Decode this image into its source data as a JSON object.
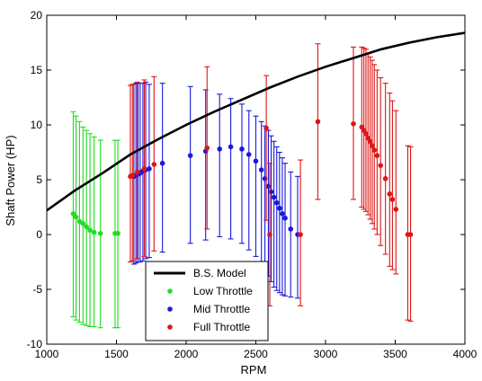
{
  "chart_data": {
    "type": "scatter",
    "xlabel": "RPM",
    "ylabel": "Shaft Power (HP)",
    "xlim": [
      1000,
      4000
    ],
    "ylim": [
      -10,
      20
    ],
    "xticks": [
      1000,
      1500,
      2000,
      2500,
      3000,
      3500,
      4000
    ],
    "yticks": [
      -10,
      -5,
      0,
      5,
      10,
      15,
      20
    ],
    "grid": false,
    "legend_position": "lower-center",
    "series": [
      {
        "name": "B.S. Model",
        "kind": "line",
        "color": "#000000",
        "x": [
          1000,
          1200,
          1400,
          1600,
          1800,
          2000,
          2200,
          2400,
          2600,
          2800,
          3000,
          3200,
          3400,
          3600,
          3800,
          4000
        ],
        "y": [
          2.2,
          4.0,
          5.6,
          7.3,
          8.7,
          10.0,
          11.2,
          12.3,
          13.4,
          14.4,
          15.3,
          16.1,
          16.9,
          17.5,
          18.0,
          18.4
        ]
      },
      {
        "name": "Low Throttle",
        "kind": "errorbar",
        "color": "#22dd22",
        "points": [
          {
            "x": 1190,
            "y": 1.9,
            "lo": -7.5,
            "hi": 11.2
          },
          {
            "x": 1210,
            "y": 1.6,
            "lo": -7.8,
            "hi": 10.8
          },
          {
            "x": 1235,
            "y": 1.2,
            "lo": -8.0,
            "hi": 10.3
          },
          {
            "x": 1260,
            "y": 1.0,
            "lo": -8.2,
            "hi": 9.8
          },
          {
            "x": 1285,
            "y": 0.7,
            "lo": -8.3,
            "hi": 9.5
          },
          {
            "x": 1310,
            "y": 0.4,
            "lo": -8.4,
            "hi": 9.2
          },
          {
            "x": 1340,
            "y": 0.2,
            "lo": -8.4,
            "hi": 8.9
          },
          {
            "x": 1385,
            "y": 0.1,
            "lo": -8.5,
            "hi": 8.6
          },
          {
            "x": 1490,
            "y": 0.1,
            "lo": -8.5,
            "hi": 8.6
          },
          {
            "x": 1510,
            "y": 0.1,
            "lo": -8.5,
            "hi": 8.6
          }
        ]
      },
      {
        "name": "Mid Throttle",
        "kind": "errorbar",
        "color": "#1a1adc",
        "points": [
          {
            "x": 1625,
            "y": 5.3,
            "lo": -2.7,
            "hi": 13.7
          },
          {
            "x": 1640,
            "y": 5.4,
            "lo": -2.6,
            "hi": 13.8
          },
          {
            "x": 1655,
            "y": 5.5,
            "lo": -2.5,
            "hi": 13.8
          },
          {
            "x": 1670,
            "y": 5.6,
            "lo": -2.5,
            "hi": 13.8
          },
          {
            "x": 1690,
            "y": 5.8,
            "lo": -2.4,
            "hi": 13.8
          },
          {
            "x": 1710,
            "y": 5.9,
            "lo": -2.2,
            "hi": 13.9
          },
          {
            "x": 1735,
            "y": 6.0,
            "lo": -2.1,
            "hi": 13.7
          },
          {
            "x": 1830,
            "y": 6.5,
            "lo": -1.6,
            "hi": 13.8
          },
          {
            "x": 2030,
            "y": 7.2,
            "lo": -0.8,
            "hi": 13.5
          },
          {
            "x": 2140,
            "y": 7.6,
            "lo": -0.5,
            "hi": 13.2
          },
          {
            "x": 2240,
            "y": 7.8,
            "lo": -0.2,
            "hi": 12.8
          },
          {
            "x": 2320,
            "y": 8.0,
            "lo": -0.4,
            "hi": 12.4
          },
          {
            "x": 2400,
            "y": 7.8,
            "lo": -0.8,
            "hi": 11.9
          },
          {
            "x": 2450,
            "y": 7.3,
            "lo": -1.4,
            "hi": 11.3
          },
          {
            "x": 2500,
            "y": 6.7,
            "lo": -2.0,
            "hi": 10.8
          },
          {
            "x": 2540,
            "y": 5.9,
            "lo": -2.7,
            "hi": 10.3
          },
          {
            "x": 2565,
            "y": 5.1,
            "lo": -3.3,
            "hi": 9.9
          },
          {
            "x": 2590,
            "y": 4.4,
            "lo": -3.8,
            "hi": 9.5
          },
          {
            "x": 2610,
            "y": 3.9,
            "lo": -4.3,
            "hi": 9.0
          },
          {
            "x": 2630,
            "y": 3.4,
            "lo": -4.8,
            "hi": 8.5
          },
          {
            "x": 2650,
            "y": 2.9,
            "lo": -5.1,
            "hi": 8.0
          },
          {
            "x": 2670,
            "y": 2.4,
            "lo": -5.3,
            "hi": 7.5
          },
          {
            "x": 2690,
            "y": 1.9,
            "lo": -5.5,
            "hi": 7.0
          },
          {
            "x": 2710,
            "y": 1.5,
            "lo": -5.6,
            "hi": 6.5
          },
          {
            "x": 2750,
            "y": 0.5,
            "lo": -5.7,
            "hi": 5.7
          },
          {
            "x": 2800,
            "y": 0.0,
            "lo": -5.8,
            "hi": 5.3
          }
        ]
      },
      {
        "name": "Full Throttle",
        "kind": "errorbar",
        "color": "#e01515",
        "points": [
          {
            "x": 1600,
            "y": 5.3,
            "lo": -2.5,
            "hi": 13.6
          },
          {
            "x": 1615,
            "y": 5.4,
            "lo": -2.4,
            "hi": 13.7
          },
          {
            "x": 1650,
            "y": 5.7,
            "lo": -2.2,
            "hi": 13.9
          },
          {
            "x": 1700,
            "y": 6.0,
            "lo": -2.0,
            "hi": 14.1
          },
          {
            "x": 1770,
            "y": 6.4,
            "lo": -1.5,
            "hi": 14.4
          },
          {
            "x": 2150,
            "y": 7.9,
            "lo": 0.5,
            "hi": 15.3
          },
          {
            "x": 2575,
            "y": 9.7,
            "lo": 1.3,
            "hi": 14.5
          },
          {
            "x": 2600,
            "y": 0.0,
            "lo": -6.5,
            "hi": 6.5
          },
          {
            "x": 2820,
            "y": 0.0,
            "lo": -6.5,
            "hi": 6.8
          },
          {
            "x": 2945,
            "y": 10.3,
            "lo": 3.2,
            "hi": 17.4
          },
          {
            "x": 3200,
            "y": 10.1,
            "lo": 3.2,
            "hi": 17.1
          },
          {
            "x": 3260,
            "y": 9.8,
            "lo": 2.5,
            "hi": 17.1
          },
          {
            "x": 3275,
            "y": 9.5,
            "lo": 2.3,
            "hi": 17.0
          },
          {
            "x": 3290,
            "y": 9.2,
            "lo": 2.1,
            "hi": 16.9
          },
          {
            "x": 3305,
            "y": 8.8,
            "lo": 1.8,
            "hi": 16.5
          },
          {
            "x": 3320,
            "y": 8.5,
            "lo": 1.4,
            "hi": 16.2
          },
          {
            "x": 3335,
            "y": 8.1,
            "lo": 1.0,
            "hi": 15.9
          },
          {
            "x": 3350,
            "y": 7.7,
            "lo": 0.5,
            "hi": 15.5
          },
          {
            "x": 3370,
            "y": 7.2,
            "lo": 0.0,
            "hi": 15.0
          },
          {
            "x": 3395,
            "y": 6.3,
            "lo": -1.0,
            "hi": 14.3
          },
          {
            "x": 3430,
            "y": 5.1,
            "lo": -1.8,
            "hi": 13.8
          },
          {
            "x": 3460,
            "y": 3.7,
            "lo": -2.9,
            "hi": 12.9
          },
          {
            "x": 3480,
            "y": 3.2,
            "lo": -3.2,
            "hi": 12.2
          },
          {
            "x": 3505,
            "y": 2.3,
            "lo": -3.6,
            "hi": 11.3
          },
          {
            "x": 3590,
            "y": 0.0,
            "lo": -7.8,
            "hi": 8.1
          },
          {
            "x": 3610,
            "y": 0.0,
            "lo": -7.9,
            "hi": 8.0
          }
        ]
      }
    ]
  }
}
